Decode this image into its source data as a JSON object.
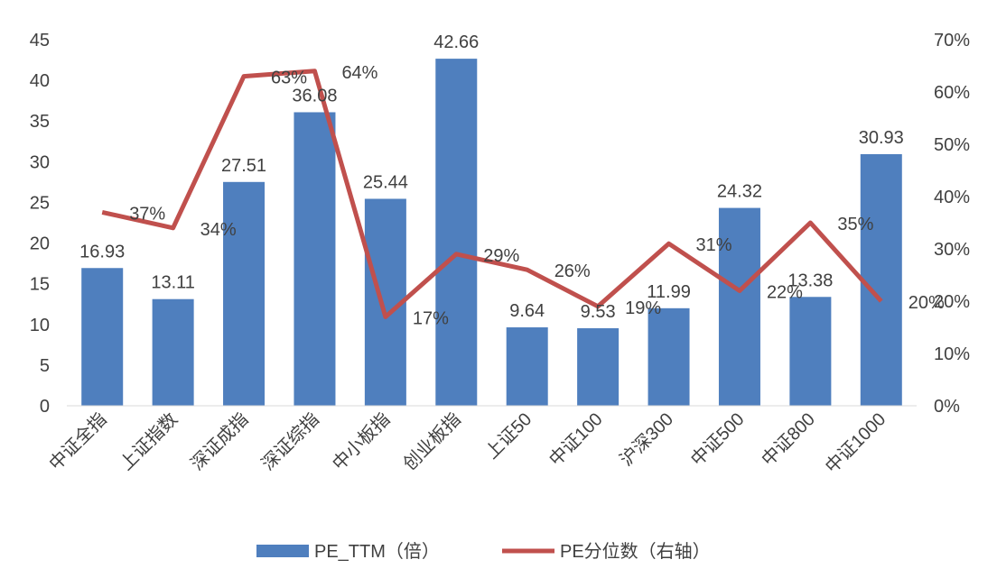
{
  "chart_data": {
    "type": "bar+line",
    "title": "",
    "categories": [
      "中证全指",
      "上证指数",
      "深证成指",
      "深证综指",
      "中小板指",
      "创业板指",
      "上证50",
      "中证100",
      "沪深300",
      "中证500",
      "中证800",
      "中证1000"
    ],
    "series": [
      {
        "name": "PE_TTM（倍）",
        "type": "bar",
        "axis": "left",
        "color": "#4F7FBE",
        "values": [
          16.93,
          13.11,
          27.51,
          36.08,
          25.44,
          42.66,
          9.64,
          9.53,
          11.99,
          24.32,
          13.38,
          30.93
        ],
        "labels": [
          "16.93",
          "13.11",
          "27.51",
          "36.08",
          "25.44",
          "42.66",
          "9.64",
          "9.53",
          "11.99",
          "24.32",
          "13.38",
          "30.93"
        ]
      },
      {
        "name": "PE分位数（右轴）",
        "type": "line",
        "axis": "right",
        "color": "#C0504D",
        "values": [
          37,
          34,
          63,
          64,
          17,
          29,
          26,
          19,
          31,
          22,
          35,
          20
        ],
        "labels": [
          "37%",
          "34%",
          "63%",
          "64%",
          "17%",
          "29%",
          "26%",
          "19%",
          "31%",
          "22%",
          "35%",
          "20%"
        ]
      }
    ],
    "y_left": {
      "range": [
        0,
        45
      ],
      "ticks": [
        "0",
        "5",
        "10",
        "15",
        "20",
        "25",
        "30",
        "35",
        "40",
        "45"
      ]
    },
    "y_right": {
      "range": [
        0,
        70
      ],
      "unit": "%",
      "ticks": [
        "0%",
        "10%",
        "20%",
        "30%",
        "40%",
        "50%",
        "60%",
        "70%"
      ]
    },
    "grid": false,
    "legend_position": "bottom"
  }
}
